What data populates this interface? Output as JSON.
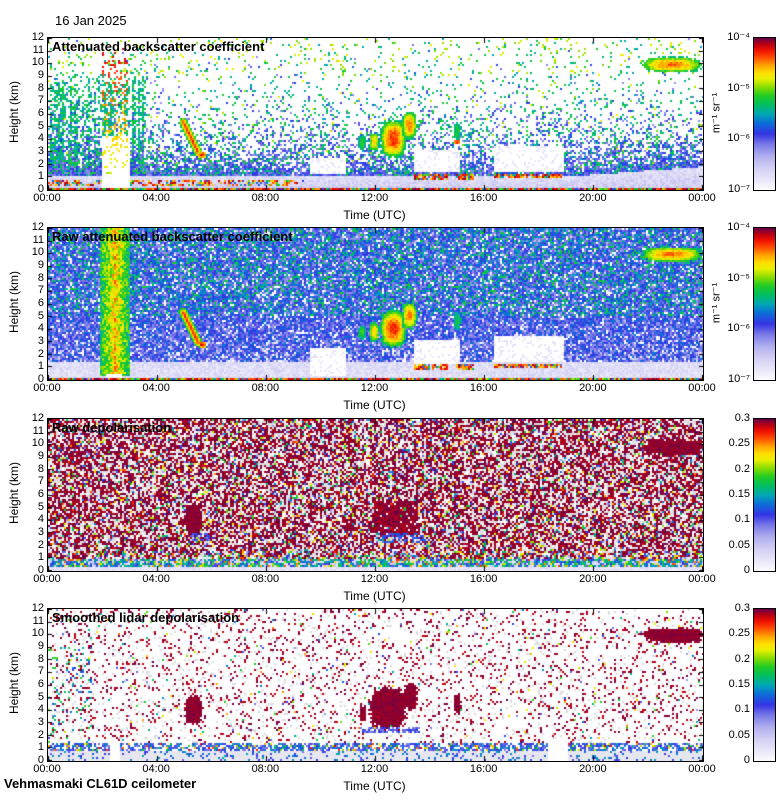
{
  "page": {
    "date_label": "16 Jan 2025",
    "footer": "Vehmasmaki CL61D ceilometer"
  },
  "colormap": [
    [
      0.0,
      "#fdfdff"
    ],
    [
      0.06,
      "#ebe9f9"
    ],
    [
      0.14,
      "#d4d2f4"
    ],
    [
      0.22,
      "#b2b0ee"
    ],
    [
      0.3,
      "#7a7ae8"
    ],
    [
      0.37,
      "#3434e4"
    ],
    [
      0.44,
      "#0b6fd8"
    ],
    [
      0.5,
      "#00a8b4"
    ],
    [
      0.56,
      "#00be62"
    ],
    [
      0.62,
      "#22cc22"
    ],
    [
      0.68,
      "#8ede00"
    ],
    [
      0.73,
      "#e8f000"
    ],
    [
      0.77,
      "#ffe000"
    ],
    [
      0.82,
      "#ffa400"
    ],
    [
      0.87,
      "#ff5000"
    ],
    [
      0.92,
      "#f01000"
    ],
    [
      0.96,
      "#b80014"
    ],
    [
      1.0,
      "#64004b"
    ]
  ],
  "chart_data": [
    {
      "type": "heatmap",
      "title": "Attenuated backscatter coefficient",
      "xlabel": "Time (UTC)",
      "ylabel": "Height (km)",
      "x_tick_labels": [
        "00:00",
        "04:00",
        "08:00",
        "12:00",
        "16:00",
        "20:00",
        "00:00"
      ],
      "y_ticks": [
        0,
        1,
        2,
        3,
        4,
        5,
        6,
        7,
        8,
        9,
        10,
        11,
        12
      ],
      "xlim_hours": [
        0,
        24
      ],
      "ylim_km": [
        0,
        12
      ],
      "colorbar": {
        "scale": "log",
        "range": [
          1e-07,
          0.0001
        ],
        "tick_labels": [
          "10⁻⁴",
          "10⁻⁵",
          "10⁻⁶",
          "10⁻⁷"
        ],
        "unit": "m⁻¹ sr⁻¹"
      },
      "noise_profile": "calibrated",
      "features": [
        {
          "kind": "layer",
          "t": [
            0,
            9.4
          ],
          "h": [
            0.3,
            0.75
          ],
          "p": 0.5
        },
        {
          "kind": "clear",
          "t": [
            2.0,
            3.0
          ],
          "h": [
            0,
            4.3
          ]
        },
        {
          "kind": "spray",
          "t": [
            2.0,
            2.95
          ],
          "h": [
            1.2,
            11.2
          ],
          "p": 0.18
        },
        {
          "kind": "pale",
          "t": [
            9.6,
            10.9
          ],
          "h": [
            1.2,
            2.6
          ]
        },
        {
          "kind": "pale",
          "t": [
            13.4,
            15.1
          ],
          "h": [
            1.4,
            3.2
          ]
        },
        {
          "kind": "pale",
          "t": [
            16.3,
            18.9
          ],
          "h": [
            1.5,
            3.4
          ]
        },
        {
          "kind": "streak",
          "from": [
            4.95,
            5.35
          ],
          "to": [
            5.5,
            2.95
          ],
          "w": 0.16
        },
        {
          "kind": "blob",
          "t": [
            5.5,
            5.8
          ],
          "h": [
            2.55,
            3.0
          ],
          "core": 0.95,
          "edge": 0.72
        },
        {
          "kind": "blob",
          "t": [
            11.35,
            11.62
          ],
          "h": [
            3.2,
            4.35
          ],
          "core": 0.62,
          "edge": 0.5
        },
        {
          "kind": "blob",
          "t": [
            11.75,
            12.12
          ],
          "h": [
            3.0,
            4.6
          ],
          "core": 0.78,
          "edge": 0.52
        },
        {
          "kind": "blob",
          "t": [
            12.15,
            13.12
          ],
          "h": [
            2.5,
            5.6
          ],
          "core": 0.9,
          "edge": 0.52
        },
        {
          "kind": "blob",
          "t": [
            12.95,
            13.5
          ],
          "h": [
            4.0,
            6.2
          ],
          "core": 0.84,
          "edge": 0.54
        },
        {
          "kind": "blob",
          "t": [
            14.85,
            15.12
          ],
          "h": [
            3.9,
            5.3
          ],
          "core": 0.6,
          "edge": 0.5
        },
        {
          "kind": "blob",
          "t": [
            14.88,
            15.06
          ],
          "h": [
            3.65,
            3.95
          ],
          "core": 0.92,
          "edge": 0.8
        },
        {
          "kind": "layer",
          "t": [
            13.4,
            14.65
          ],
          "h": [
            0.85,
            1.25
          ],
          "p": 0.85
        },
        {
          "kind": "layer",
          "t": [
            14.9,
            15.6
          ],
          "h": [
            0.85,
            1.2
          ],
          "p": 0.85
        },
        {
          "kind": "layer",
          "t": [
            16.3,
            18.8
          ],
          "h": [
            0.9,
            1.3
          ],
          "p": 0.85
        },
        {
          "kind": "blob",
          "t": [
            21.7,
            23.95
          ],
          "h": [
            9.3,
            10.5
          ],
          "core": 0.85,
          "edge": 0.55
        },
        {
          "kind": "surface"
        }
      ]
    },
    {
      "type": "heatmap",
      "title": "Raw attenuated backscatter coefficient",
      "xlabel": "Time (UTC)",
      "ylabel": "Height (km)",
      "x_tick_labels": [
        "00:00",
        "04:00",
        "08:00",
        "12:00",
        "16:00",
        "20:00",
        "00:00"
      ],
      "y_ticks": [
        0,
        1,
        2,
        3,
        4,
        5,
        6,
        7,
        8,
        9,
        10,
        11,
        12
      ],
      "xlim_hours": [
        0,
        24
      ],
      "ylim_km": [
        0,
        12
      ],
      "colorbar": {
        "scale": "log",
        "range": [
          1e-07,
          0.0001
        ],
        "tick_labels": [
          "10⁻⁴",
          "10⁻⁵",
          "10⁻⁶",
          "10⁻⁷"
        ],
        "unit": "m⁻¹ sr⁻¹"
      },
      "noise_profile": "raw",
      "features": [
        {
          "kind": "warmcol",
          "t": [
            1.9,
            3.0
          ],
          "h": [
            0.3,
            12
          ]
        },
        {
          "kind": "clear",
          "t": [
            2.15,
            2.7
          ],
          "h": [
            0,
            0.5
          ]
        },
        {
          "kind": "pale",
          "t": [
            9.6,
            10.9
          ],
          "h": [
            0.3,
            2.6
          ]
        },
        {
          "kind": "pale",
          "t": [
            13.4,
            15.1
          ],
          "h": [
            1.3,
            3.2
          ]
        },
        {
          "kind": "pale",
          "t": [
            16.3,
            18.9
          ],
          "h": [
            1.4,
            3.4
          ]
        },
        {
          "kind": "streak",
          "from": [
            4.95,
            5.35
          ],
          "to": [
            5.5,
            2.95
          ],
          "w": 0.16
        },
        {
          "kind": "blob",
          "t": [
            5.5,
            5.8
          ],
          "h": [
            2.55,
            3.0
          ],
          "core": 0.95,
          "edge": 0.72
        },
        {
          "kind": "blob",
          "t": [
            11.35,
            11.62
          ],
          "h": [
            3.2,
            4.35
          ],
          "core": 0.62,
          "edge": 0.5
        },
        {
          "kind": "blob",
          "t": [
            11.75,
            12.12
          ],
          "h": [
            3.0,
            4.6
          ],
          "core": 0.78,
          "edge": 0.52
        },
        {
          "kind": "blob",
          "t": [
            12.15,
            13.12
          ],
          "h": [
            2.5,
            5.6
          ],
          "core": 0.9,
          "edge": 0.52
        },
        {
          "kind": "blob",
          "t": [
            12.95,
            13.5
          ],
          "h": [
            4.0,
            6.2
          ],
          "core": 0.84,
          "edge": 0.54
        },
        {
          "kind": "blob",
          "t": [
            14.85,
            15.12
          ],
          "h": [
            3.9,
            5.3
          ],
          "core": 0.6,
          "edge": 0.5
        },
        {
          "kind": "layer",
          "t": [
            13.4,
            14.65
          ],
          "h": [
            0.85,
            1.25
          ],
          "p": 0.85
        },
        {
          "kind": "layer",
          "t": [
            14.9,
            15.6
          ],
          "h": [
            0.85,
            1.2
          ],
          "p": 0.85
        },
        {
          "kind": "layer",
          "t": [
            16.3,
            18.8
          ],
          "h": [
            0.9,
            1.3
          ],
          "p": 0.85
        },
        {
          "kind": "blob",
          "t": [
            21.7,
            23.95
          ],
          "h": [
            9.3,
            10.5
          ],
          "core": 0.85,
          "edge": 0.55
        },
        {
          "kind": "surface"
        }
      ]
    },
    {
      "type": "heatmap",
      "title": "Raw depolarisation",
      "xlabel": "Time (UTC)",
      "ylabel": "Height (km)",
      "x_tick_labels": [
        "00:00",
        "04:00",
        "08:00",
        "12:00",
        "16:00",
        "20:00",
        "00:00"
      ],
      "y_ticks": [
        0,
        1,
        2,
        3,
        4,
        5,
        6,
        7,
        8,
        9,
        10,
        11,
        12
      ],
      "xlim_hours": [
        0,
        24
      ],
      "ylim_km": [
        0,
        12
      ],
      "colorbar": {
        "scale": "linear",
        "range": [
          0,
          0.3
        ],
        "tick_labels": [
          "0.3",
          "0.25",
          "0.2",
          "0.15",
          "0.1",
          "0.05",
          "0"
        ],
        "unit": null
      },
      "noise_profile": "depol_raw",
      "features": [
        {
          "kind": "solid",
          "t": [
            5.0,
            5.65
          ],
          "h": [
            2.9,
            5.2
          ],
          "v": 0.99
        },
        {
          "kind": "band",
          "t": [
            5.25,
            5.95
          ],
          "h": [
            2.3,
            3.0
          ],
          "v": 0.35,
          "p": 0.7
        },
        {
          "kind": "dense",
          "t": [
            11.9,
            13.5
          ],
          "h": [
            3.0,
            5.5
          ],
          "p": 0.85
        },
        {
          "kind": "band",
          "t": [
            12.0,
            13.8
          ],
          "h": [
            2.2,
            3.0
          ],
          "v": 0.38,
          "p": 0.5
        },
        {
          "kind": "solid",
          "t": [
            21.8,
            23.95
          ],
          "h": [
            9.2,
            10.4
          ],
          "v": 0.99
        },
        {
          "kind": "accent",
          "t": [
            0,
            24
          ],
          "h": [
            1.0,
            1.6
          ],
          "p": 0.2
        }
      ]
    },
    {
      "type": "heatmap",
      "title": "Smoothed lidar depolarisation",
      "xlabel": "Time (UTC)",
      "ylabel": "Height (km)",
      "x_tick_labels": [
        "00:00",
        "04:00",
        "08:00",
        "12:00",
        "16:00",
        "20:00",
        "00:00"
      ],
      "y_ticks": [
        0,
        1,
        2,
        3,
        4,
        5,
        6,
        7,
        8,
        9,
        10,
        11,
        12
      ],
      "xlim_hours": [
        0,
        24
      ],
      "ylim_km": [
        0,
        12
      ],
      "colorbar": {
        "scale": "linear",
        "range": [
          0,
          0.3
        ],
        "tick_labels": [
          "0.3",
          "0.25",
          "0.2",
          "0.15",
          "0.1",
          "0.05",
          "0"
        ],
        "unit": null
      },
      "noise_profile": "depol_smooth",
      "features": [
        {
          "kind": "solid",
          "t": [
            5.0,
            5.65
          ],
          "h": [
            2.9,
            5.2
          ],
          "v": 0.99
        },
        {
          "kind": "solid",
          "t": [
            11.4,
            11.66
          ],
          "h": [
            3.1,
            4.4
          ],
          "v": 0.99
        },
        {
          "kind": "solid",
          "t": [
            11.78,
            13.12
          ],
          "h": [
            2.6,
            5.8
          ],
          "v": 0.99
        },
        {
          "kind": "solid",
          "t": [
            13.0,
            13.52
          ],
          "h": [
            4.0,
            6.1
          ],
          "v": 0.99
        },
        {
          "kind": "solid",
          "t": [
            14.85,
            15.12
          ],
          "h": [
            3.8,
            5.3
          ],
          "v": 0.99
        },
        {
          "kind": "solid",
          "t": [
            21.8,
            24.0
          ],
          "h": [
            9.3,
            10.5
          ],
          "v": 0.99
        },
        {
          "kind": "band",
          "t": [
            11.4,
            13.6
          ],
          "h": [
            2.2,
            2.7
          ],
          "v": 0.34,
          "p": 0.6
        },
        {
          "kind": "clear",
          "t": [
            2.25,
            2.65
          ],
          "h": [
            0,
            1.6
          ]
        },
        {
          "kind": "clear",
          "t": [
            18.3,
            19.0
          ],
          "h": [
            0,
            1.6
          ]
        }
      ]
    }
  ]
}
